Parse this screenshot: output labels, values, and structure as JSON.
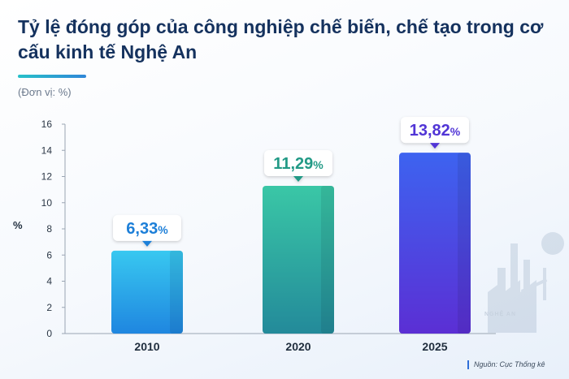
{
  "title": "Tỷ lệ đóng góp của công nghiệp chế biến, chế tạo trong cơ cấu kinh tế Nghệ An",
  "unit_note": "(Đơn vị: %)",
  "source": "Nguồn: Cục Thống kê",
  "watermark": "NGHỆ AN",
  "chart_data": {
    "type": "bar",
    "title": "Tỷ lệ đóng góp của công nghiệp chế biến, chế tạo trong cơ cấu kinh tế Nghệ An",
    "ylabel": "%",
    "xlabel": "",
    "categories": [
      "2010",
      "2020",
      "2025"
    ],
    "values": [
      6.33,
      11.29,
      13.82
    ],
    "value_labels": [
      "6,33",
      "11,29",
      "13,82"
    ],
    "value_suffix": "%",
    "yticks": [
      0,
      2,
      4,
      6,
      8,
      10,
      12,
      14,
      16
    ],
    "ylim": [
      0,
      16
    ],
    "grid": false,
    "colors": [
      "#2b9fe6",
      "#2fb9a0",
      "#4b3fe0"
    ]
  }
}
